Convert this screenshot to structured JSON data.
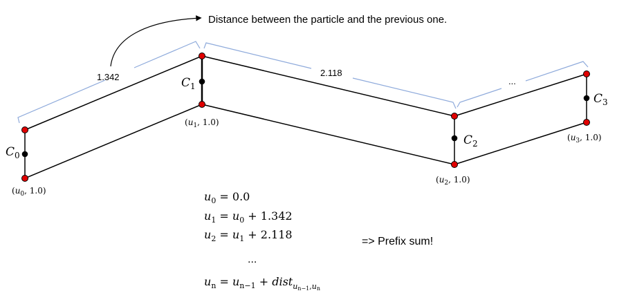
{
  "annotation": "Distance between the particle and the previous one.",
  "brace_labels": [
    "1.342",
    "2.118",
    "..."
  ],
  "segments": [
    {
      "label_var": "C",
      "label_sub": "0",
      "coord_var": "u",
      "coord_sub": "0",
      "coord_val": "1.0"
    },
    {
      "label_var": "C",
      "label_sub": "1",
      "coord_var": "u",
      "coord_sub": "1",
      "coord_val": "1.0"
    },
    {
      "label_var": "C",
      "label_sub": "2",
      "coord_var": "u",
      "coord_sub": "2",
      "coord_val": "1.0"
    },
    {
      "label_var": "C",
      "label_sub": "3",
      "coord_var": "u",
      "coord_sub": "3",
      "coord_val": "1.0"
    }
  ],
  "equations": {
    "line0": {
      "lhs": "u",
      "lhs_sub": "0",
      "rhs": "0.0"
    },
    "line1": {
      "lhs": "u",
      "lhs_sub": "1",
      "rhs_var": "u",
      "rhs_sub": "0",
      "rhs_rest": "+ 1.342"
    },
    "line2": {
      "lhs": "u",
      "lhs_sub": "2",
      "rhs_var": "u",
      "rhs_sub": "1",
      "rhs_rest": "+ 2.118"
    },
    "ellipsis": "...",
    "linen": {
      "lhs": "u",
      "lhs_sub": "n",
      "rhs_var": "u",
      "rhs_sub": "n−1",
      "plus": "+",
      "dist": "dist",
      "dist_sub_a": "u",
      "dist_sub_a_sub": "n−1",
      "comma": ",",
      "dist_sub_b": "u",
      "dist_sub_b_sub": "n"
    }
  },
  "prefix_note": "=> Prefix sum!",
  "colors": {
    "point_red": "#e00000",
    "point_black": "#000000",
    "brace": "#8eaadb",
    "line": "#000000"
  }
}
